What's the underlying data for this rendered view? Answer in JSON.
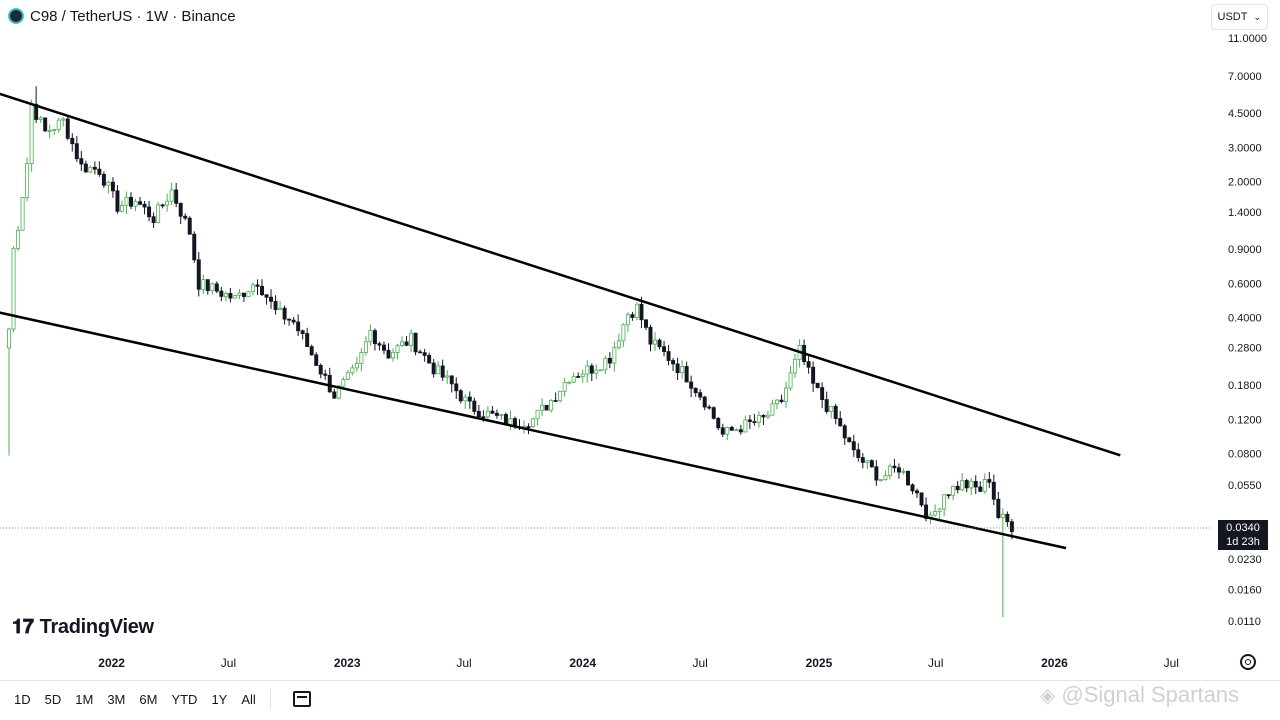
{
  "header": {
    "symbol": "C98",
    "pair_title": "C98 / TetherUS · 1W · Binance"
  },
  "currency": "USDT",
  "price_axis": {
    "ticks": [
      "11.0000",
      "7.0000",
      "4.5000",
      "3.0000",
      "2.0000",
      "1.4000",
      "0.9000",
      "0.6000",
      "0.4000",
      "0.2800",
      "0.1800",
      "0.1200",
      "0.0800",
      "0.0550",
      "0.0230",
      "0.0160",
      "0.0110"
    ],
    "scale": "log"
  },
  "current_price": {
    "value": "0.0340",
    "countdown": "1d 23h"
  },
  "time_axis": {
    "labels": [
      {
        "text": "2022",
        "bold": true
      },
      {
        "text": "Jul",
        "bold": false
      },
      {
        "text": "2023",
        "bold": true
      },
      {
        "text": "Jul",
        "bold": false
      },
      {
        "text": "2024",
        "bold": true
      },
      {
        "text": "Jul",
        "bold": false
      },
      {
        "text": "2025",
        "bold": true
      },
      {
        "text": "Jul",
        "bold": false
      },
      {
        "text": "2026",
        "bold": true
      },
      {
        "text": "Jul",
        "bold": false
      }
    ]
  },
  "brand": "TradingView",
  "ranges": [
    "1D",
    "5D",
    "1M",
    "3M",
    "6M",
    "YTD",
    "1Y",
    "All"
  ],
  "watermark": "@Signal Spartans",
  "colors": {
    "up": "#26a69a",
    "up_green": "#4caf50",
    "down": "#131722",
    "trendline": "#000000"
  },
  "chart_data": {
    "type": "candlestick",
    "interval": "1W",
    "y_scale": "log",
    "ylim": [
      0.0105,
      11.5
    ],
    "xlim": [
      "2021-07-12",
      "2026-08-30"
    ],
    "x_ticks": [
      "2022-01-01",
      "2022-07-01",
      "2023-01-01",
      "2023-07-01",
      "2024-01-01",
      "2024-07-01",
      "2025-01-01",
      "2025-07-01",
      "2026-01-01",
      "2026-07-01"
    ],
    "close_anchors": [
      [
        "2021-07-26",
        0.35
      ],
      [
        "2021-08-02",
        0.9
      ],
      [
        "2021-08-09",
        1.2
      ],
      [
        "2021-08-23",
        2.5
      ],
      [
        "2021-08-30",
        5.0
      ],
      [
        "2021-09-20",
        3.6
      ],
      [
        "2021-10-18",
        4.1
      ],
      [
        "2021-11-15",
        2.4
      ],
      [
        "2021-12-13",
        2.3
      ],
      [
        "2022-01-10",
        1.5
      ],
      [
        "2022-02-07",
        1.6
      ],
      [
        "2022-03-07",
        1.3
      ],
      [
        "2022-04-04",
        1.8
      ],
      [
        "2022-05-02",
        1.1
      ],
      [
        "2022-05-16",
        0.6
      ],
      [
        "2022-06-13",
        0.55
      ],
      [
        "2022-07-11",
        0.5
      ],
      [
        "2022-08-15",
        0.62
      ],
      [
        "2022-09-12",
        0.43
      ],
      [
        "2022-10-10",
        0.38
      ],
      [
        "2022-11-07",
        0.26
      ],
      [
        "2022-12-12",
        0.16
      ],
      [
        "2023-01-16",
        0.22
      ],
      [
        "2023-02-06",
        0.34
      ],
      [
        "2023-03-06",
        0.26
      ],
      [
        "2023-04-10",
        0.31
      ],
      [
        "2023-05-15",
        0.22
      ],
      [
        "2023-06-12",
        0.18
      ],
      [
        "2023-07-10",
        0.14
      ],
      [
        "2023-08-14",
        0.125
      ],
      [
        "2023-09-11",
        0.115
      ],
      [
        "2023-10-16",
        0.12
      ],
      [
        "2023-11-13",
        0.15
      ],
      [
        "2023-12-11",
        0.2
      ],
      [
        "2024-01-15",
        0.22
      ],
      [
        "2024-02-12",
        0.25
      ],
      [
        "2024-03-11",
        0.42
      ],
      [
        "2024-03-25",
        0.45
      ],
      [
        "2024-04-15",
        0.3
      ],
      [
        "2024-05-13",
        0.25
      ],
      [
        "2024-06-10",
        0.2
      ],
      [
        "2024-07-08",
        0.15
      ],
      [
        "2024-08-05",
        0.1
      ],
      [
        "2024-09-02",
        0.11
      ],
      [
        "2024-10-07",
        0.12
      ],
      [
        "2024-11-04",
        0.15
      ],
      [
        "2024-12-02",
        0.27
      ],
      [
        "2024-12-23",
        0.18
      ],
      [
        "2025-01-27",
        0.12
      ],
      [
        "2025-02-24",
        0.08
      ],
      [
        "2025-04-07",
        0.06
      ],
      [
        "2025-05-05",
        0.068
      ],
      [
        "2025-06-02",
        0.05
      ],
      [
        "2025-06-23",
        0.036
      ],
      [
        "2025-07-14",
        0.05
      ],
      [
        "2025-08-11",
        0.056
      ],
      [
        "2025-09-08",
        0.052
      ],
      [
        "2025-09-22",
        0.06
      ],
      [
        "2025-10-06",
        0.038
      ],
      [
        "2025-10-27",
        0.034
      ]
    ],
    "extremes": [
      {
        "date": "2021-07-26",
        "low": 0.078,
        "note": "listing wick"
      },
      {
        "date": "2021-09-06",
        "high": 6.2
      },
      {
        "date": "2025-10-13",
        "low": 0.0115,
        "note": "flash crash wick"
      }
    ],
    "trendlines": [
      {
        "name": "",
        "from": [
          "2021-06-28",
          5.85
        ],
        "to": [
          "2026-04-13",
          0.0783
        ]
      },
      {
        "name": "",
        "from": [
          "2021-06-07",
          0.45
        ],
        "to": [
          "2026-01-19",
          0.0261
        ]
      }
    ],
    "last_price": 0.034
  }
}
